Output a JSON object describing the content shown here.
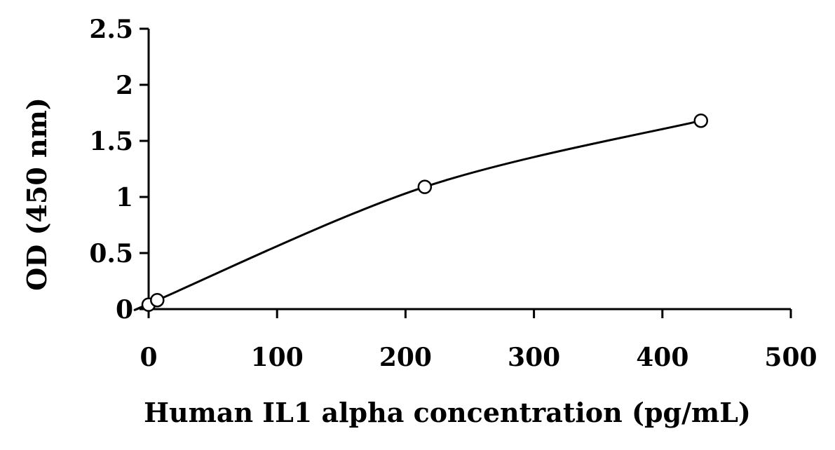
{
  "chart_data": {
    "type": "scatter",
    "title": "",
    "xlabel": "Human IL1 alpha concentration (pg/mL)",
    "ylabel": "OD (450 nm)",
    "xlim": [
      0,
      500
    ],
    "ylim": [
      0,
      2.5
    ],
    "x_ticks": [
      0,
      100,
      200,
      300,
      400,
      500
    ],
    "y_ticks": [
      0,
      0.5,
      1,
      1.5,
      2,
      2.5
    ],
    "x_tick_labels": [
      "0",
      "100",
      "200",
      "300",
      "400",
      "500"
    ],
    "y_tick_labels": [
      "0",
      "0.5",
      "1",
      "1.5",
      "2",
      "2.5"
    ],
    "grid": false,
    "legend": "none",
    "marker": "open-circle",
    "fit": "smooth curve",
    "series": [
      {
        "x": [
          0,
          6.7,
          215,
          430
        ],
        "y": [
          0.04,
          0.08,
          1.09,
          1.68
        ]
      }
    ]
  }
}
